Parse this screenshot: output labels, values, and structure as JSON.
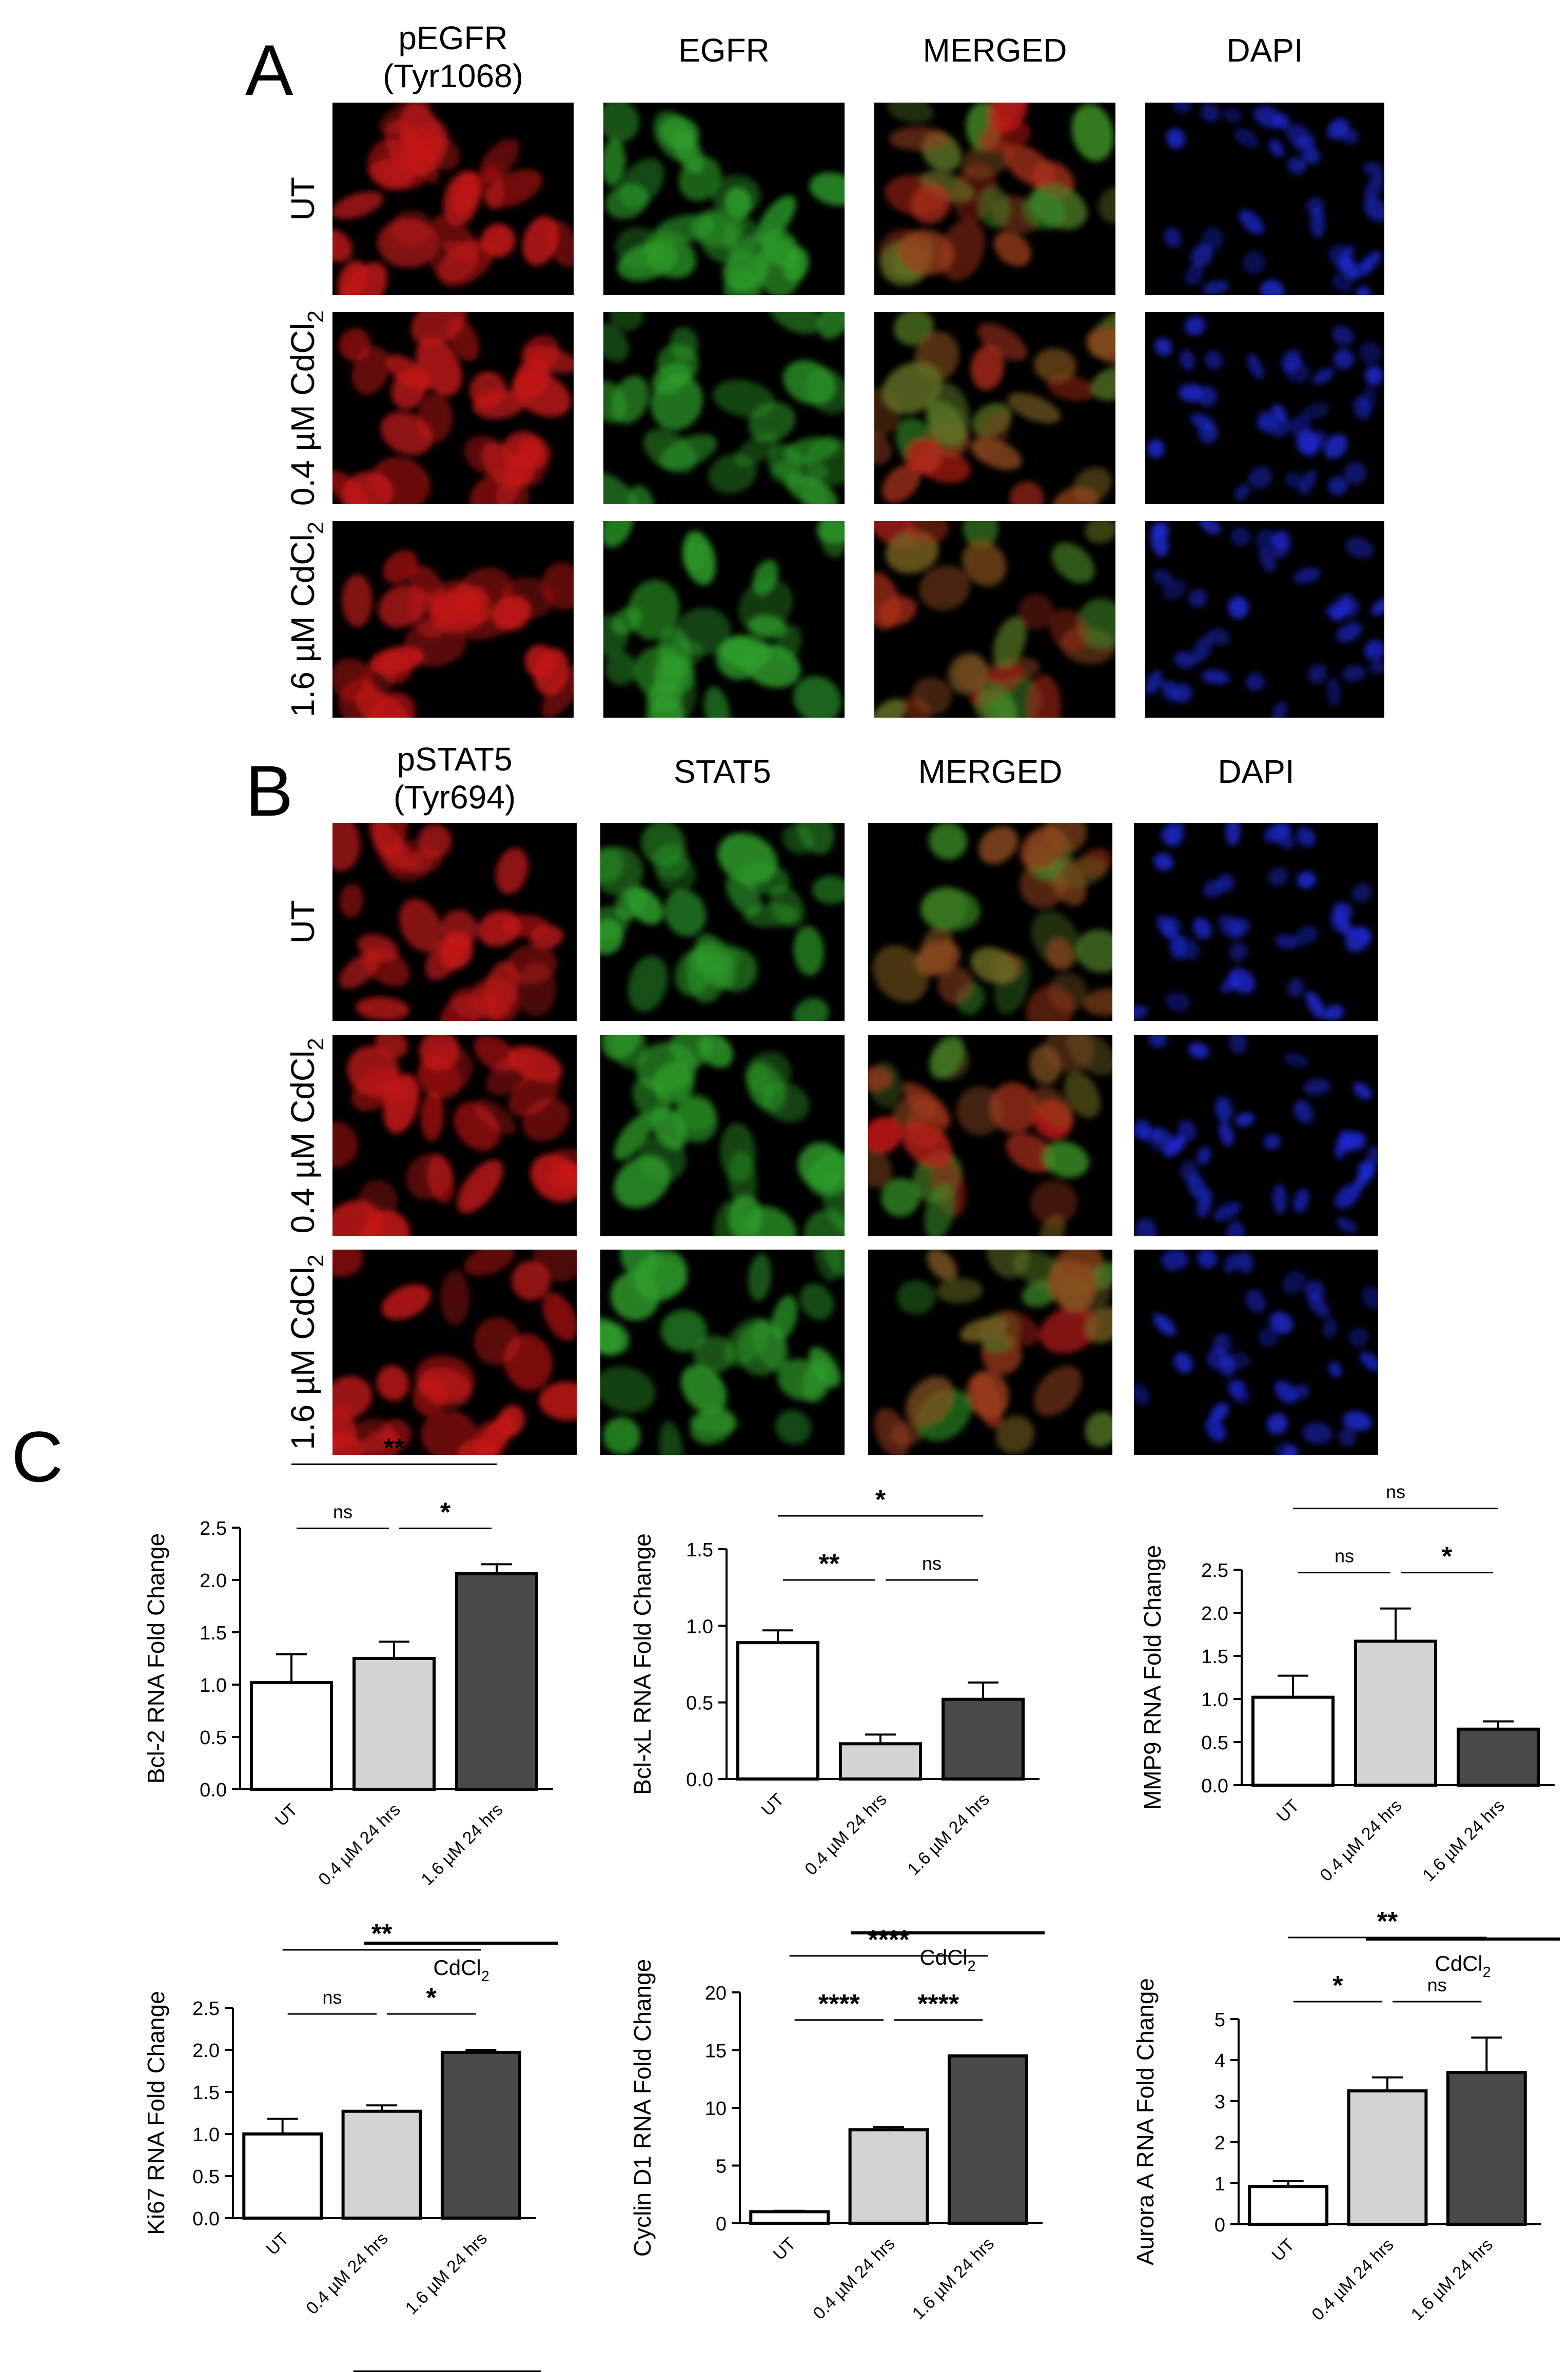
{
  "colors": {
    "pEGFR": "#c81818",
    "EGFR": "#2e9e2a",
    "MERGED": "#9a9020",
    "DAPI": "#1e2ad8",
    "bar_ut": "#ffffff",
    "bar_low": "#d3d3d3",
    "bar_high": "#4a4a4a"
  },
  "panel_a": {
    "letter": "A",
    "columns": [
      {
        "label": "pEGFR",
        "sublabel": "(Tyr1068)",
        "channel": "pEGFR"
      },
      {
        "label": "EGFR",
        "sublabel": "",
        "channel": "EGFR"
      },
      {
        "label": "MERGED",
        "sublabel": "",
        "channel": "MERGED"
      },
      {
        "label": "DAPI",
        "sublabel": "",
        "channel": "DAPI"
      }
    ],
    "rows": [
      {
        "main": "UT",
        "sub": ""
      },
      {
        "main": "0.4 µM CdCl",
        "sub": "2"
      },
      {
        "main": "1.6 µM CdCl",
        "sub": "2"
      }
    ]
  },
  "panel_b": {
    "letter": "B",
    "columns": [
      {
        "label": "pSTAT5",
        "sublabel": "(Tyr694)",
        "channel": "pEGFR"
      },
      {
        "label": "STAT5",
        "sublabel": "",
        "channel": "EGFR"
      },
      {
        "label": "MERGED",
        "sublabel": "",
        "channel": "MERGED"
      },
      {
        "label": "DAPI",
        "sublabel": "",
        "channel": "DAPI"
      }
    ],
    "rows": [
      {
        "main": "UT",
        "sub": ""
      },
      {
        "main": "0.4 µM CdCl",
        "sub": "2"
      },
      {
        "main": "1.6 µM CdCl",
        "sub": "2"
      }
    ]
  },
  "panel_c": {
    "letter": "C",
    "group_label": "CdCl",
    "group_label_sub": "2"
  },
  "chart_data": [
    {
      "type": "bar",
      "ylabel": "Bcl-2 RNA Fold Change",
      "categories": [
        "UT",
        "0.4 µM 24 hrs",
        "1.6 µM 24 hrs"
      ],
      "values": [
        1.02,
        1.25,
        2.06
      ],
      "errors": [
        0.27,
        0.16,
        0.09
      ],
      "ylim": [
        0,
        2.5
      ],
      "yticks": [
        "0.0",
        "0.5",
        "1.0",
        "1.5",
        "2.0",
        "2.5"
      ],
      "comparisons": [
        {
          "from": 0,
          "to": 1,
          "label": "ns"
        },
        {
          "from": 1,
          "to": 2,
          "label": "*"
        },
        {
          "from": 0,
          "to": 2,
          "label": "**"
        }
      ]
    },
    {
      "type": "bar",
      "ylabel": "Bcl-xL RNA Fold Change",
      "categories": [
        "UT",
        "0.4 µM 24 hrs",
        "1.6 µM 24 hrs"
      ],
      "values": [
        0.89,
        0.23,
        0.52
      ],
      "errors": [
        0.08,
        0.06,
        0.11
      ],
      "ylim": [
        0,
        1.5
      ],
      "yticks": [
        "0.0",
        "0.5",
        "1.0",
        "1.5"
      ],
      "comparisons": [
        {
          "from": 0,
          "to": 1,
          "label": "**"
        },
        {
          "from": 1,
          "to": 2,
          "label": "ns"
        },
        {
          "from": 0,
          "to": 2,
          "label": "*"
        }
      ]
    },
    {
      "type": "bar",
      "ylabel": "MMP9 RNA Fold Change",
      "categories": [
        "UT",
        "0.4 µM 24 hrs",
        "1.6 µM 24 hrs"
      ],
      "values": [
        1.02,
        1.67,
        0.65
      ],
      "errors": [
        0.25,
        0.38,
        0.09
      ],
      "ylim": [
        0,
        2.5
      ],
      "yticks": [
        "0.0",
        "0.5",
        "1.0",
        "1.5",
        "2.0",
        "2.5"
      ],
      "comparisons": [
        {
          "from": 0,
          "to": 1,
          "label": "ns"
        },
        {
          "from": 1,
          "to": 2,
          "label": "*"
        },
        {
          "from": 0,
          "to": 2,
          "label": "ns"
        }
      ]
    },
    {
      "type": "bar",
      "ylabel": "Ki67 RNA Fold Change",
      "categories": [
        "UT",
        "0.4 µM 24 hrs",
        "1.6 µM 24 hrs"
      ],
      "values": [
        1.0,
        1.27,
        1.97
      ],
      "errors": [
        0.18,
        0.07,
        0.03
      ],
      "ylim": [
        0,
        2.5
      ],
      "yticks": [
        "0.0",
        "0.5",
        "1.0",
        "1.5",
        "2.0",
        "2.5"
      ],
      "comparisons": [
        {
          "from": 0,
          "to": 1,
          "label": "ns"
        },
        {
          "from": 1,
          "to": 2,
          "label": "*"
        },
        {
          "from": 0,
          "to": 2,
          "label": "**"
        }
      ]
    },
    {
      "type": "bar",
      "ylabel": "Cyclin D1 RNA Fold Change",
      "categories": [
        "UT",
        "0.4 µM 24 hrs",
        "1.6 µM 24 hrs"
      ],
      "values": [
        1.0,
        8.1,
        14.5
      ],
      "errors": [
        0.08,
        0.25,
        0.0
      ],
      "ylim": [
        0,
        20
      ],
      "yticks": [
        "0",
        "5",
        "10",
        "15",
        "20"
      ],
      "comparisons": [
        {
          "from": 0,
          "to": 1,
          "label": "****"
        },
        {
          "from": 1,
          "to": 2,
          "label": "****"
        },
        {
          "from": 0,
          "to": 2,
          "label": "****"
        }
      ]
    },
    {
      "type": "bar",
      "ylabel": "Aurora A RNA Fold Change",
      "categories": [
        "UT",
        "0.4 µM 24 hrs",
        "1.6 µM 24 hrs"
      ],
      "values": [
        0.92,
        3.25,
        3.7
      ],
      "errors": [
        0.13,
        0.33,
        0.85
      ],
      "ylim": [
        0,
        5
      ],
      "yticks": [
        "0",
        "1",
        "2",
        "3",
        "4",
        "5"
      ],
      "comparisons": [
        {
          "from": 0,
          "to": 1,
          "label": "*"
        },
        {
          "from": 1,
          "to": 2,
          "label": "ns"
        },
        {
          "from": 0,
          "to": 2,
          "label": "**"
        }
      ]
    }
  ]
}
